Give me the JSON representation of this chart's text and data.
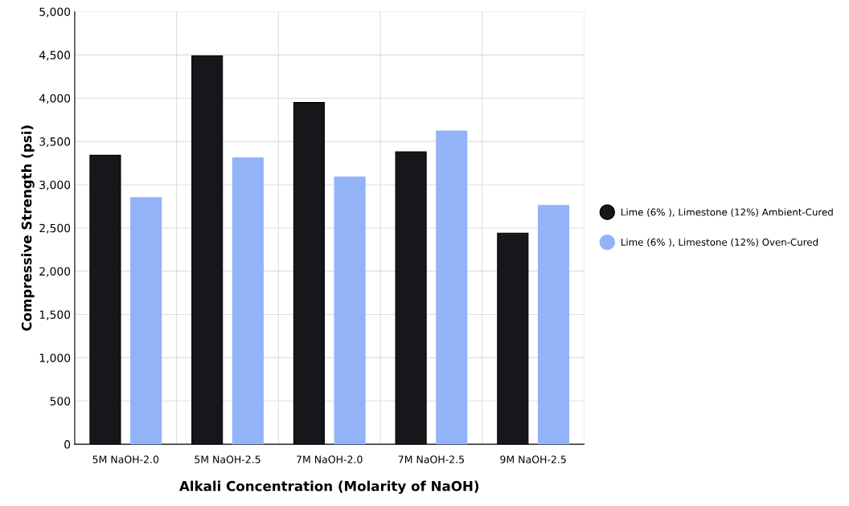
{
  "chart_data": {
    "type": "bar",
    "xlabel": "Alkali Concentration (Molarity of NaOH)",
    "ylabel": "Compressive Strength (psi)",
    "categories": [
      "5M NaOH-2.0",
      "5M NaOH-2.5",
      "7M NaOH-2.0",
      "7M NaOH-2.5",
      "9M NaOH-2.5"
    ],
    "series": [
      {
        "name": "Lime (6% ), Limestone (12%) Ambient-Cured",
        "color": "#16171b",
        "values": [
          3340,
          4490,
          3950,
          3380,
          2440
        ]
      },
      {
        "name": "Lime (6% ), Limestone (12%) Oven-Cured",
        "color": "#93b3f8",
        "values": [
          2850,
          3310,
          3090,
          3620,
          2760
        ]
      }
    ],
    "ylim": [
      0,
      5000
    ],
    "yticks": [
      {
        "value": 0,
        "label": "0"
      },
      {
        "value": 500,
        "label": "500"
      },
      {
        "value": 1000,
        "label": "1,000"
      },
      {
        "value": 1500,
        "label": "1,500"
      },
      {
        "value": 2000,
        "label": "2,000"
      },
      {
        "value": 2500,
        "label": "2,500"
      },
      {
        "value": 3000,
        "label": "3,000"
      },
      {
        "value": 3500,
        "label": "3,500"
      },
      {
        "value": 4000,
        "label": "4,000"
      },
      {
        "value": 4500,
        "label": "4,500"
      },
      {
        "value": 5000,
        "label": "5,000"
      }
    ],
    "grid": true,
    "legend": "right"
  }
}
